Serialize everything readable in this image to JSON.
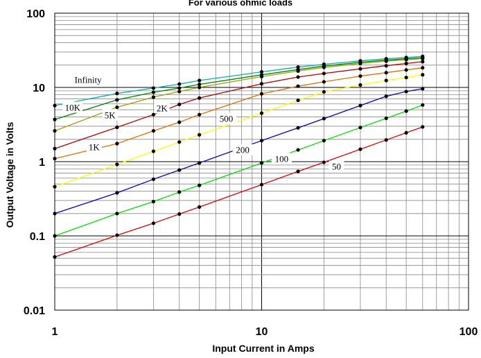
{
  "chart_data": {
    "type": "line",
    "title": "For various ohmic loads",
    "xlabel": "Input Current in Amps",
    "ylabel": "Output Voltage in Volts",
    "xscale": "log",
    "yscale": "log",
    "xlim": [
      1,
      100
    ],
    "ylim": [
      0.01,
      100
    ],
    "grid": true,
    "x_tick_labels": [
      "1",
      "10",
      "100"
    ],
    "y_tick_labels": [
      "100",
      "10",
      "1",
      "0.1",
      "0.01"
    ],
    "x": [
      1,
      2,
      3,
      4,
      5,
      10,
      15,
      20,
      30,
      40,
      50,
      60
    ],
    "series": [
      {
        "name": "Infinity",
        "color": "#00b0b0",
        "values": [
          5.7,
          8.3,
          9.8,
          11.1,
          12.4,
          16.2,
          18.8,
          20.5,
          22.8,
          24.3,
          25.3,
          26.2
        ]
      },
      {
        "name": "10K",
        "color": "#008000",
        "values": [
          3.7,
          6.8,
          8.6,
          9.8,
          11.0,
          14.8,
          17.4,
          19.4,
          21.8,
          23.3,
          24.3,
          25.2
        ]
      },
      {
        "name": "5K",
        "color": "#a0a000",
        "values": [
          2.6,
          5.4,
          7.4,
          8.8,
          10.0,
          14.0,
          16.6,
          18.6,
          21.0,
          22.6,
          23.6,
          24.4
        ]
      },
      {
        "name": "2K",
        "color": "#b00000",
        "values": [
          1.5,
          2.9,
          4.3,
          5.9,
          7.2,
          11.2,
          13.8,
          15.4,
          17.8,
          19.6,
          21.0,
          22.2
        ]
      },
      {
        "name": "1K",
        "color": "#e07000",
        "values": [
          1.1,
          1.75,
          2.6,
          3.4,
          4.3,
          8.2,
          10.4,
          11.9,
          14.2,
          15.8,
          17.2,
          18.4
        ]
      },
      {
        "name": "500",
        "color": "#ffff00",
        "values": [
          0.46,
          0.92,
          1.38,
          1.84,
          2.3,
          4.5,
          6.7,
          8.7,
          10.8,
          12.4,
          13.6,
          14.8
        ]
      },
      {
        "name": "200",
        "color": "#0000c0",
        "values": [
          0.2,
          0.38,
          0.58,
          0.77,
          0.96,
          1.92,
          2.85,
          3.8,
          5.7,
          7.6,
          8.8,
          9.6
        ]
      },
      {
        "name": "100",
        "color": "#00e000",
        "values": [
          0.1,
          0.2,
          0.29,
          0.39,
          0.48,
          0.96,
          1.44,
          1.92,
          2.88,
          3.84,
          4.8,
          5.8
        ]
      },
      {
        "name": "50",
        "color": "#e00000",
        "values": [
          0.052,
          0.102,
          0.148,
          0.197,
          0.245,
          0.49,
          0.74,
          0.98,
          1.47,
          1.96,
          2.45,
          2.94
        ]
      }
    ]
  }
}
